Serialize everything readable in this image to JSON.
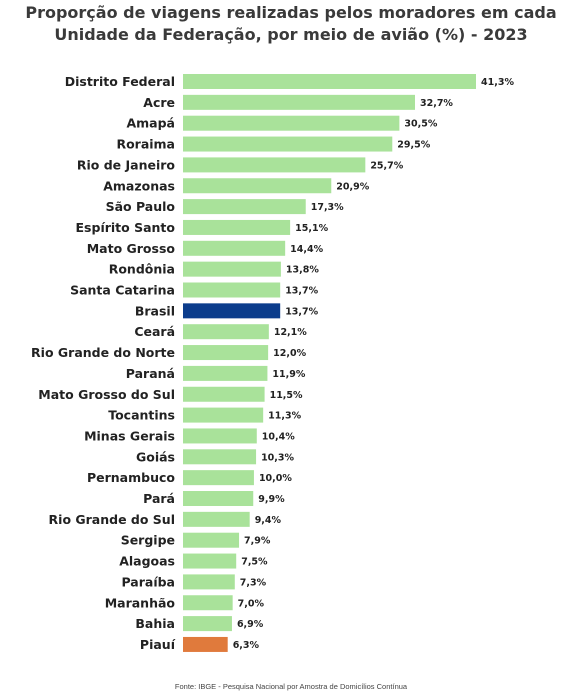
{
  "chart_data": {
    "type": "bar",
    "orientation": "horizontal",
    "title_lines": [
      "Proporção de viagens realizadas pelos moradores em cada",
      "Unidade da Federação, por meio de avião (%) - 2023"
    ],
    "categories": [
      "Distrito Federal",
      "Acre",
      "Amapá",
      "Roraima",
      "Rio de Janeiro",
      "Amazonas",
      "São Paulo",
      "Espírito Santo",
      "Mato Grosso",
      "Rondônia",
      "Santa Catarina",
      "Brasil",
      "Ceará",
      "Rio Grande do Norte",
      "Paraná",
      "Mato Grosso do Sul",
      "Tocantins",
      "Minas Gerais",
      "Goiás",
      "Pernambuco",
      "Pará",
      "Rio Grande do Sul",
      "Sergipe",
      "Alagoas",
      "Paraíba",
      "Maranhão",
      "Bahia",
      "Piauí"
    ],
    "values": [
      41.3,
      32.7,
      30.5,
      29.5,
      25.7,
      20.9,
      17.3,
      15.1,
      14.4,
      13.8,
      13.7,
      13.7,
      12.1,
      12.0,
      11.9,
      11.5,
      11.3,
      10.4,
      10.3,
      10.0,
      9.9,
      9.4,
      7.9,
      7.5,
      7.3,
      7.0,
      6.9,
      6.3
    ],
    "value_labels": [
      "41,3%",
      "32,7%",
      "30,5%",
      "29,5%",
      "25,7%",
      "20,9%",
      "17,3%",
      "15,1%",
      "14,4%",
      "13,8%",
      "13,7%",
      "13,7%",
      "12,1%",
      "12,0%",
      "11,9%",
      "11,5%",
      "11,3%",
      "10,4%",
      "10,3%",
      "10,0%",
      "9,9%",
      "9,4%",
      "7,9%",
      "7,5%",
      "7,3%",
      "7,0%",
      "6,9%",
      "6,3%"
    ],
    "colors": {
      "default": "#a9e29a",
      "Brasil": "#0c3d8c",
      "Piauí": "#e07a3c"
    },
    "xlim": [
      0,
      41.3
    ],
    "grid": false
  },
  "source": "Fonte: IBGE - Pesquisa Nacional por Amostra de Domicílios Contínua"
}
